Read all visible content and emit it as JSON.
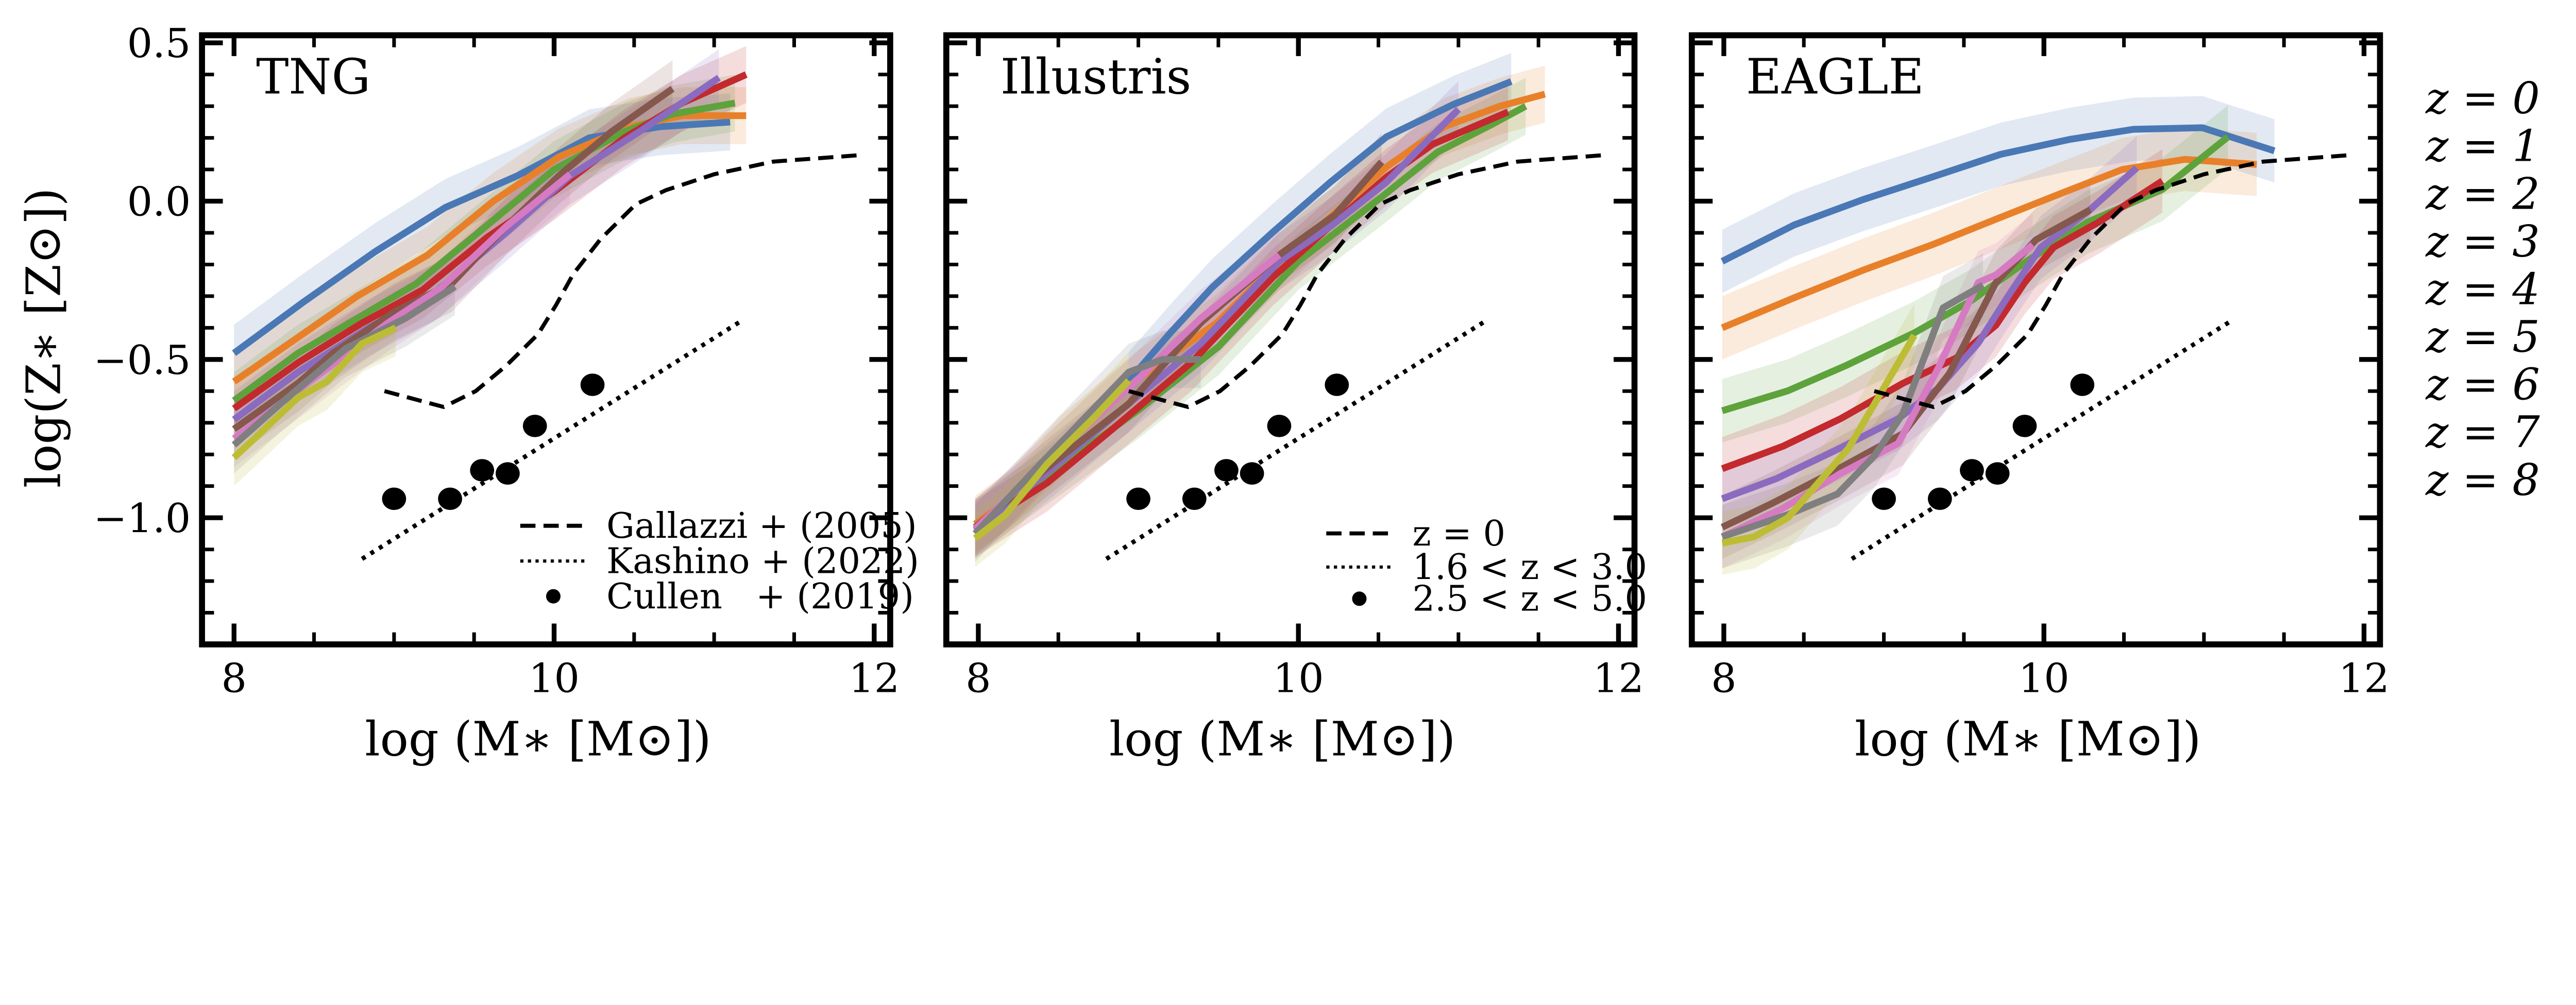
{
  "colors": {
    "z0": "#4a78b5",
    "z1": "#e8802a",
    "z2": "#5ea23c",
    "z3": "#c22a2e",
    "z4": "#8a6bbf",
    "z5": "#84584c",
    "z6": "#d67ac2",
    "z7": "#7f7f7f",
    "z8": "#bcbd34",
    "reference": "#000000"
  },
  "z_legend": [
    "z = 0",
    "z = 1",
    "z = 2",
    "z = 3",
    "z = 4",
    "z = 5",
    "z = 6",
    "z = 7",
    "z = 8"
  ],
  "references": {
    "dashed": {
      "x": [
        8.94,
        9.31,
        9.51,
        9.7,
        9.9,
        10.01,
        10.12,
        10.29,
        10.51,
        10.7,
        11.0,
        11.37,
        11.9
      ],
      "y": [
        -0.6,
        -0.65,
        -0.6,
        -0.52,
        -0.42,
        -0.33,
        -0.23,
        -0.12,
        -0.01,
        0.035,
        0.085,
        0.125,
        0.145
      ]
    },
    "dotted": {
      "x": [
        8.8,
        11.18
      ],
      "y": [
        -1.13,
        -0.375
      ]
    },
    "points": {
      "x": [
        9.0,
        9.35,
        9.55,
        9.71,
        9.88,
        10.24
      ],
      "y": [
        -0.94,
        -0.94,
        -0.85,
        -0.86,
        -0.71,
        -0.58
      ]
    }
  },
  "chart_data": [
    {
      "type": "line",
      "title": "TNG",
      "xlabel": "log (M∗ [M⊙])",
      "ylabel": "log(Z∗ [Z⊙])",
      "xlim": [
        7.8,
        12.1
      ],
      "ylim": [
        -1.4,
        0.524
      ],
      "xticks": [
        "8",
        "10",
        "12"
      ],
      "yticks": [
        "0.5",
        "0.0",
        "−0.5",
        "−1.0"
      ],
      "band_halfwidth": 0.09,
      "legend": [
        "Gallazzi + (2005)",
        "Kashino + (2022)",
        "Cullen   + (2019)"
      ],
      "legend_placement": "lower-right",
      "series": [
        {
          "name": "z = 0",
          "x": [
            8,
            8.43,
            8.88,
            9.32,
            9.77,
            10.22,
            10.66,
            11.1
          ],
          "y": [
            -0.48,
            -0.32,
            -0.16,
            -0.02,
            0.08,
            0.2,
            0.235,
            0.25
          ]
        },
        {
          "name": "z = 1",
          "x": [
            8,
            8.4,
            8.77,
            9.21,
            9.62,
            10.03,
            10.47,
            10.8,
            11.2
          ],
          "y": [
            -0.57,
            -0.43,
            -0.3,
            -0.17,
            0,
            0.14,
            0.235,
            0.27,
            0.27
          ]
        },
        {
          "name": "z = 2",
          "x": [
            8,
            8.4,
            8.77,
            9.14,
            9.62,
            10,
            10.44,
            10.74,
            11.13
          ],
          "y": [
            -0.63,
            -0.48,
            -0.37,
            -0.26,
            -0.06,
            0.1,
            0.22,
            0.275,
            0.31
          ]
        },
        {
          "name": "z = 3",
          "x": [
            8,
            8.4,
            8.8,
            9.18,
            9.58,
            10,
            10.44,
            10.8,
            11.2
          ],
          "y": [
            -0.655,
            -0.51,
            -0.385,
            -0.28,
            -0.115,
            0.03,
            0.2,
            0.31,
            0.4
          ]
        },
        {
          "name": "z = 4",
          "x": [
            8,
            8.4,
            8.84,
            9.25,
            9.7,
            10.1,
            10.55,
            11.03
          ],
          "y": [
            -0.69,
            -0.54,
            -0.4,
            -0.29,
            -0.1,
            0.08,
            0.225,
            0.39
          ]
        },
        {
          "name": "z = 5",
          "x": [
            8,
            8.4,
            8.62,
            9,
            9.36,
            9.7,
            10.03,
            10.36,
            10.74
          ],
          "y": [
            -0.72,
            -0.575,
            -0.48,
            -0.35,
            -0.26,
            -0.08,
            0.08,
            0.22,
            0.355
          ]
        },
        {
          "name": "z = 6",
          "x": [
            8,
            8.21,
            8.55,
            8.96,
            9.29,
            9.7,
            10.1
          ],
          "y": [
            -0.75,
            -0.67,
            -0.54,
            -0.385,
            -0.275,
            -0.08,
            0.085
          ]
        },
        {
          "name": "z = 7",
          "x": [
            8,
            8.29,
            8.7,
            9.07,
            9.38
          ],
          "y": [
            -0.77,
            -0.64,
            -0.465,
            -0.37,
            -0.27
          ]
        },
        {
          "name": "z = 8",
          "x": [
            8,
            8.17,
            8.4,
            8.58,
            8.8,
            9.01
          ],
          "y": [
            -0.81,
            -0.73,
            -0.62,
            -0.57,
            -0.45,
            -0.4
          ]
        }
      ]
    },
    {
      "type": "line",
      "title": "Illustris",
      "xlabel": "log (M∗ [M⊙])",
      "xlim": [
        7.8,
        12.1
      ],
      "ylim": [
        -1.4,
        0.524
      ],
      "xticks": [
        "8",
        "10",
        "12"
      ],
      "band_halfwidth": 0.09,
      "legend": [
        "z = 0",
        "1.6 < z < 3.0",
        "2.5 < z < 5.0"
      ],
      "legend_placement": "lower-right",
      "series": [
        {
          "name": "z = 0",
          "x": [
            8.94,
            9.2,
            9.46,
            9.84,
            10.2,
            10.55,
            10.97,
            11.33
          ],
          "y": [
            -0.567,
            -0.416,
            -0.273,
            -0.098,
            0.06,
            0.203,
            0.306,
            0.378
          ]
        },
        {
          "name": "z = 1",
          "x": [
            7.98,
            8.2,
            8.52,
            9,
            9.49,
            9.84,
            10.2,
            10.55,
            10.91,
            11.26,
            11.54
          ],
          "y": [
            -1.02,
            -0.94,
            -0.765,
            -0.56,
            -0.384,
            -0.21,
            -0.05,
            0.108,
            0.235,
            0.3,
            0.338
          ]
        },
        {
          "name": "z = 2",
          "x": [
            7.98,
            8.45,
            9,
            9.5,
            10,
            10.52,
            10.87,
            11.2,
            11.42
          ],
          "y": [
            -1.03,
            -0.86,
            -0.66,
            -0.46,
            -0.19,
            0.013,
            0.155,
            0.24,
            0.3
          ]
        },
        {
          "name": "z = 3",
          "x": [
            7.98,
            8.43,
            8.85,
            9.33,
            9.84,
            10.23,
            10.55,
            10.84,
            11.31
          ],
          "y": [
            -1.035,
            -0.89,
            -0.715,
            -0.51,
            -0.24,
            -0.065,
            0.076,
            0.18,
            0.282
          ]
        },
        {
          "name": "z = 4",
          "x": [
            7.98,
            8.46,
            8.94,
            9.39,
            9.88,
            10.2,
            10.55,
            11.0
          ],
          "y": [
            -1.04,
            -0.845,
            -0.64,
            -0.45,
            -0.19,
            -0.08,
            0.06,
            0.29
          ]
        },
        {
          "name": "z = 5",
          "x": [
            7.98,
            8.46,
            8.94,
            9.39,
            9.88,
            10.23,
            10.52
          ],
          "y": [
            -1.03,
            -0.83,
            -0.64,
            -0.384,
            -0.17,
            -0.043,
            0.124
          ]
        },
        {
          "name": "z = 6",
          "x": [
            7.98,
            8.46,
            8.94,
            9.39,
            9.88
          ],
          "y": [
            -1.035,
            -0.81,
            -0.59,
            -0.37,
            -0.17
          ]
        },
        {
          "name": "z = 7",
          "x": [
            7.98,
            8.36,
            8.94,
            9.15,
            9.39
          ],
          "y": [
            -1.05,
            -0.845,
            -0.54,
            -0.5,
            -0.5
          ]
        },
        {
          "name": "z = 8",
          "x": [
            7.98,
            8.17,
            8.43,
            8.72,
            8.94
          ],
          "y": [
            -1.065,
            -0.99,
            -0.83,
            -0.685,
            -0.567
          ]
        }
      ]
    },
    {
      "type": "line",
      "title": "EAGLE",
      "xlabel": "log (M∗ [M⊙])",
      "xlim": [
        7.8,
        12.1
      ],
      "ylim": [
        -1.4,
        0.524
      ],
      "xticks": [
        "8",
        "10",
        "12"
      ],
      "band_halfwidth": 0.1,
      "series": [
        {
          "name": "z = 0",
          "x": [
            7.99,
            8.44,
            8.87,
            9.3,
            9.73,
            10.16,
            10.56,
            10.99,
            11.44
          ],
          "y": [
            -0.19,
            -0.075,
            0.005,
            0.076,
            0.148,
            0.195,
            0.227,
            0.232,
            0.159
          ]
        },
        {
          "name": "z = 1",
          "x": [
            7.99,
            8.44,
            8.87,
            9.3,
            9.73,
            10.13,
            10.49,
            10.88,
            11.33
          ],
          "y": [
            -0.4,
            -0.305,
            -0.218,
            -0.138,
            -0.051,
            0.029,
            0.1,
            0.132,
            0.116
          ]
        },
        {
          "name": "z = 2",
          "x": [
            7.99,
            8.4,
            8.76,
            9.19,
            9.55,
            9.88,
            10.27,
            10.74,
            11.15
          ],
          "y": [
            -0.662,
            -0.599,
            -0.52,
            -0.416,
            -0.313,
            -0.194,
            -0.067,
            0.037,
            0.203
          ]
        },
        {
          "name": "z = 3",
          "x": [
            7.99,
            8.37,
            8.73,
            9.12,
            9.45,
            9.7,
            9.88,
            10.06,
            10.34,
            10.74
          ],
          "y": [
            -0.845,
            -0.774,
            -0.687,
            -0.575,
            -0.496,
            -0.392,
            -0.257,
            -0.146,
            -0.067,
            0.064
          ]
        },
        {
          "name": "z = 4",
          "x": [
            7.99,
            8.33,
            8.69,
            9.09,
            9.34,
            9.59,
            9.77,
            9.98,
            10.27,
            10.58
          ],
          "y": [
            -0.94,
            -0.876,
            -0.789,
            -0.687,
            -0.591,
            -0.448,
            -0.305,
            -0.146,
            -0.035,
            0.105
          ]
        },
        {
          "name": "z = 5",
          "x": [
            7.99,
            8.3,
            8.66,
            9.12,
            9.41,
            9.7,
            9.95,
            10.29
          ],
          "y": [
            -1.03,
            -0.955,
            -0.861,
            -0.734,
            -0.544,
            -0.257,
            -0.122,
            -0.027
          ]
        },
        {
          "name": "z = 6",
          "x": [
            7.99,
            8.37,
            8.73,
            9.09,
            9.34,
            9.59,
            9.7,
            9.93
          ],
          "y": [
            -1.06,
            -0.97,
            -0.86,
            -0.765,
            -0.527,
            -0.257,
            -0.233,
            -0.138
          ]
        },
        {
          "name": "z = 7",
          "x": [
            7.99,
            8.4,
            8.71,
            8.94,
            9.12,
            9.37,
            9.62
          ],
          "y": [
            -1.06,
            -0.99,
            -0.925,
            -0.805,
            -0.67,
            -0.337,
            -0.265
          ]
        },
        {
          "name": "z = 8",
          "x": [
            7.99,
            8.19,
            8.4,
            8.78,
            8.98,
            9.19
          ],
          "y": [
            -1.08,
            -1.06,
            -1.0,
            -0.78,
            -0.607,
            -0.424
          ]
        }
      ]
    }
  ]
}
